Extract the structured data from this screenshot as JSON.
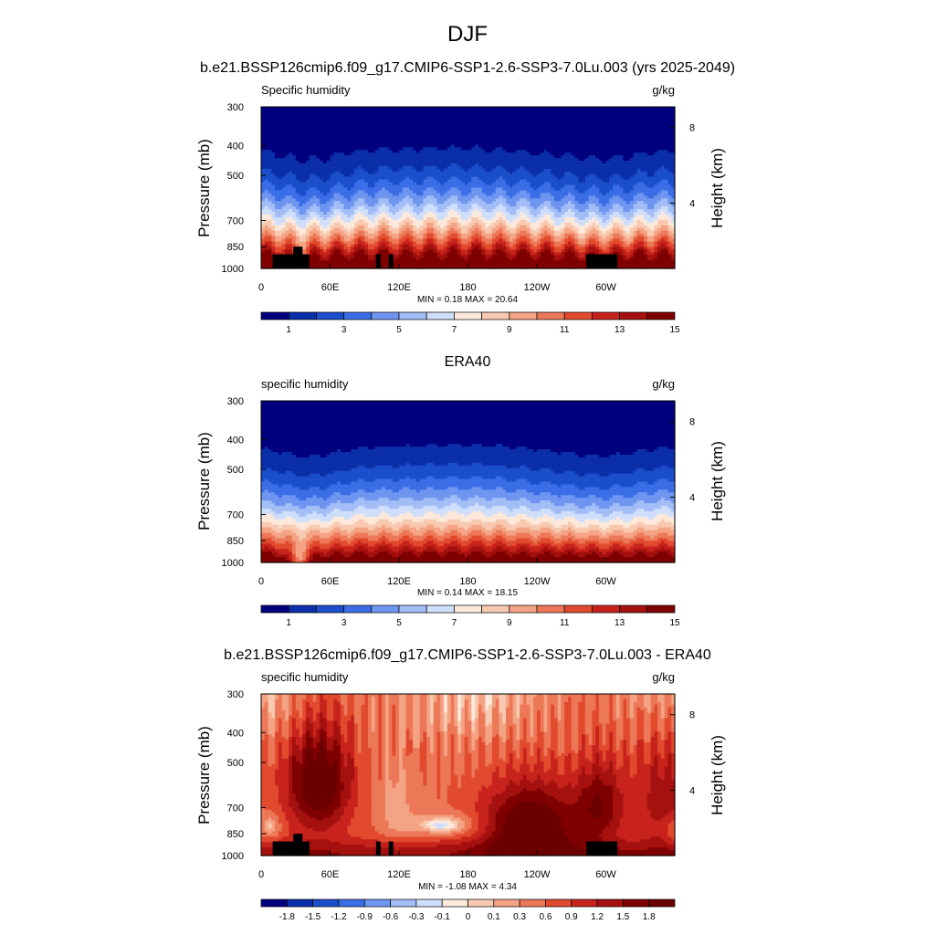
{
  "title": "DJF",
  "colors": {
    "abs": [
      "#00007f",
      "#0b2ea9",
      "#1b4ecb",
      "#3b6ee6",
      "#6e95f0",
      "#a3bdf6",
      "#cfdefa",
      "#fce9db",
      "#f8c9b0",
      "#f4a384",
      "#ec7858",
      "#e24a2e",
      "#c8221c",
      "#a4110e",
      "#7f0000"
    ],
    "diff": [
      "#00007f",
      "#0b2ea9",
      "#1b4ecb",
      "#3b6ee6",
      "#6e95f0",
      "#a3bdf6",
      "#cfdefa",
      "#fce9db",
      "#f8c9b0",
      "#f4a384",
      "#ec7858",
      "#e24a2e",
      "#c8221c",
      "#a4110e",
      "#7f0000",
      "#6a0000"
    ]
  },
  "panels": [
    {
      "title": "b.e21.BSSP126cmip6.f09_g17.CMIP6-SSP1-2.6-SSP3-7.0Lu.003 (yrs 2025-2049)",
      "left_label": "Specific humidity",
      "units": "g/kg",
      "stats": "MIN =   0.18  MAX =  20.64",
      "ylabel": "Pressure (mb)",
      "ylabel_right": "Height (km)",
      "cb_labels": [
        "1",
        "3",
        "5",
        "7",
        "9",
        "11",
        "13",
        "15"
      ]
    },
    {
      "title": "ERA40",
      "left_label": "specific humidity",
      "units": "g/kg",
      "stats": "MIN =   0.14  MAX =  18.15",
      "ylabel": "Pressure (mb)",
      "ylabel_right": "Height (km)",
      "cb_labels": [
        "1",
        "3",
        "5",
        "7",
        "9",
        "11",
        "13",
        "15"
      ]
    },
    {
      "title": "b.e21.BSSP126cmip6.f09_g17.CMIP6-SSP1-2.6-SSP3-7.0Lu.003 - ERA40",
      "left_label": "specific humidity",
      "units": "g/kg",
      "stats": "MIN =  -1.08  MAX =   4.34",
      "ylabel": "Pressure (mb)",
      "ylabel_right": "Height (km)",
      "cb_labels": [
        "-1.8",
        "-1.5",
        "-1.2",
        "-0.9",
        "-0.6",
        "-0.3",
        "-0.1",
        "0",
        "0.1",
        "0.3",
        "0.6",
        "0.9",
        "1.2",
        "1.5",
        "1.8"
      ]
    }
  ],
  "chart_data": [
    {
      "type": "heatmap",
      "title": "b.e21.BSSP126cmip6.f09_g17.CMIP6-SSP1-2.6-SSP3-7.0Lu.003 (yrs 2025-2049)",
      "variable": "Specific humidity",
      "units": "g/kg",
      "xlabel": "",
      "ylabel": "Pressure (mb)",
      "x_ticks": [
        "0",
        "60E",
        "120E",
        "180",
        "120W",
        "60W"
      ],
      "y_ticks": [
        "300",
        "400",
        "500",
        "700",
        "850",
        "1000"
      ],
      "right_ticks": [
        "8",
        "4"
      ],
      "x_range": [
        0,
        360
      ],
      "y_range": [
        1000,
        300
      ],
      "y_scale": "log",
      "min": 0.18,
      "max": 20.64,
      "levels": [
        1,
        2,
        3,
        4,
        5,
        6,
        7,
        8,
        9,
        10,
        11,
        12,
        13,
        14
      ],
      "surface_value": 17.5,
      "top_value": 0.3
    },
    {
      "type": "heatmap",
      "title": "ERA40",
      "variable": "specific humidity",
      "units": "g/kg",
      "xlabel": "",
      "ylabel": "Pressure (mb)",
      "x_ticks": [
        "0",
        "60E",
        "120E",
        "180",
        "120W",
        "60W"
      ],
      "y_ticks": [
        "300",
        "400",
        "500",
        "700",
        "850",
        "1000"
      ],
      "right_ticks": [
        "8",
        "4"
      ],
      "x_range": [
        0,
        360
      ],
      "y_range": [
        1000,
        300
      ],
      "y_scale": "log",
      "min": 0.14,
      "max": 18.15,
      "levels": [
        1,
        2,
        3,
        4,
        5,
        6,
        7,
        8,
        9,
        10,
        11,
        12,
        13,
        14
      ],
      "surface_value": 16.0,
      "top_value": 0.25
    },
    {
      "type": "heatmap",
      "title": "b.e21.BSSP126cmip6.f09_g17.CMIP6-SSP1-2.6-SSP3-7.0Lu.003 - ERA40",
      "variable": "specific humidity",
      "units": "g/kg",
      "xlabel": "",
      "ylabel": "Pressure (mb)",
      "x_ticks": [
        "0",
        "60E",
        "120E",
        "180",
        "120W",
        "60W"
      ],
      "y_ticks": [
        "300",
        "400",
        "500",
        "700",
        "850",
        "1000"
      ],
      "right_ticks": [
        "8",
        "4"
      ],
      "x_range": [
        0,
        360
      ],
      "y_range": [
        1000,
        300
      ],
      "y_scale": "log",
      "min": -1.08,
      "max": 4.34,
      "levels": [
        -1.8,
        -1.5,
        -1.2,
        -0.9,
        -0.6,
        -0.3,
        -0.1,
        0,
        0.1,
        0.3,
        0.6,
        0.9,
        1.2,
        1.5,
        1.8
      ]
    }
  ]
}
